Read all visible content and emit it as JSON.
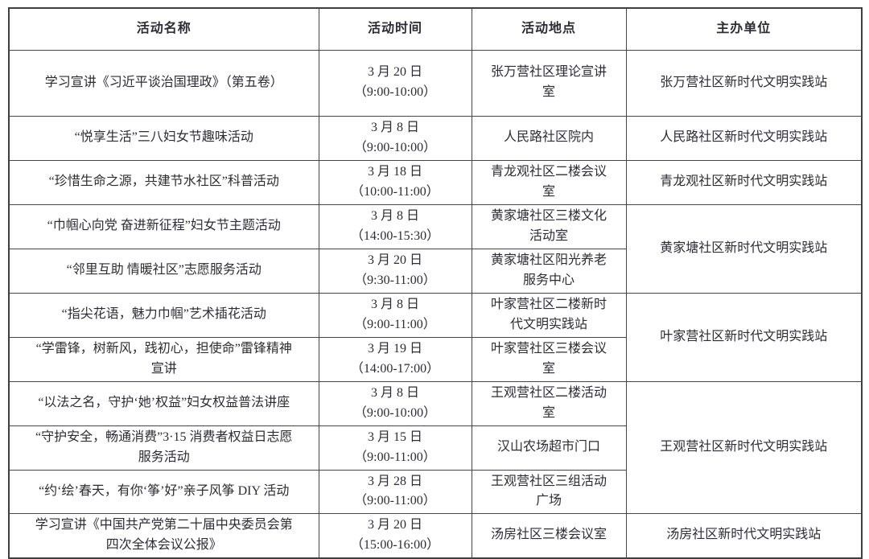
{
  "page": {
    "background_color": "#ffffff",
    "text_color": "#2c2c36",
    "border_color": "#3f3f3f"
  },
  "table": {
    "headers": [
      "活动名称",
      "活动时间",
      "活动地点",
      "主办单位"
    ],
    "rows": [
      {
        "name": "学习宣讲《习近平谈治国理政》（第五卷）",
        "date": "3 月 20 日",
        "time": "（9:00-10:00）",
        "location": "张万营社区理论宣讲室",
        "organizer": "张万营社区新时代文明实践站",
        "organizer_rowspan": 1
      },
      {
        "name": "“悦享生活”三八妇女节趣味活动",
        "date": "3 月 8 日",
        "time": "（9:00-10:00）",
        "location": "人民路社区院内",
        "organizer": "人民路社区新时代文明实践站",
        "organizer_rowspan": 1
      },
      {
        "name": "“珍惜生命之源，共建节水社区”科普活动",
        "date": "3 月 18 日",
        "time": "（10:00-11:00）",
        "location": "青龙观社区二楼会议室",
        "organizer": "青龙观社区新时代文明实践站",
        "organizer_rowspan": 1
      },
      {
        "name": "“巾帼心向党 奋进新征程”妇女节主题活动",
        "date": "3 月 8 日",
        "time": "（14:00-15:30）",
        "location": "黄家塘社区三楼文化活动室",
        "organizer": "黄家塘社区新时代文明实践站",
        "organizer_rowspan": 2
      },
      {
        "name": "“邻里互助 情暖社区”志愿服务活动",
        "date": "3 月 20 日",
        "time": "（9:30-11:00）",
        "location": "黄家塘社区阳光养老服务中心",
        "organizer": null
      },
      {
        "name": "“指尖花语，魅力巾帼”艺术插花活动",
        "date": "3 月 8 日",
        "time": "（9:00-11:00）",
        "location": "叶家营社区二楼新时代文明实践站",
        "organizer": "叶家营社区新时代文明实践站",
        "organizer_rowspan": 2
      },
      {
        "name": "“学雷锋，树新风，践初心，担使命”雷锋精神宣讲",
        "date": "3 月 19 日",
        "time": "（14:00-17:00）",
        "location": "叶家营社区三楼会议室",
        "organizer": null
      },
      {
        "name": "“以法之名，守护‘她’权益”妇女权益普法讲座",
        "date": "3 月 8 日",
        "time": "（9:00-10:00）",
        "location": "王观营社区二楼活动室",
        "organizer": "王观营社区新时代文明实践站",
        "organizer_rowspan": 3
      },
      {
        "name": "“守护安全，畅通消费”3·15 消费者权益日志愿服务活动",
        "date": "3 月 15 日",
        "time": "（9:00-11:00）",
        "location": "汉山农场超市门口",
        "organizer": null
      },
      {
        "name": "“约‘绘’春天，有你‘筝’好”亲子风筝 DIY 活动",
        "date": "3 月 28 日",
        "time": "（9:00-11:00）",
        "location": "王观营社区三组活动广场",
        "organizer": null
      },
      {
        "name": "学习宣讲《中国共产党第二十届中央委员会第四次全体会议公报》",
        "date": "3 月 20 日",
        "time": "（15:00-16:00）",
        "location": "汤房社区三楼会议室",
        "organizer": "汤房社区新时代文明实践站",
        "organizer_rowspan": 1
      }
    ]
  }
}
